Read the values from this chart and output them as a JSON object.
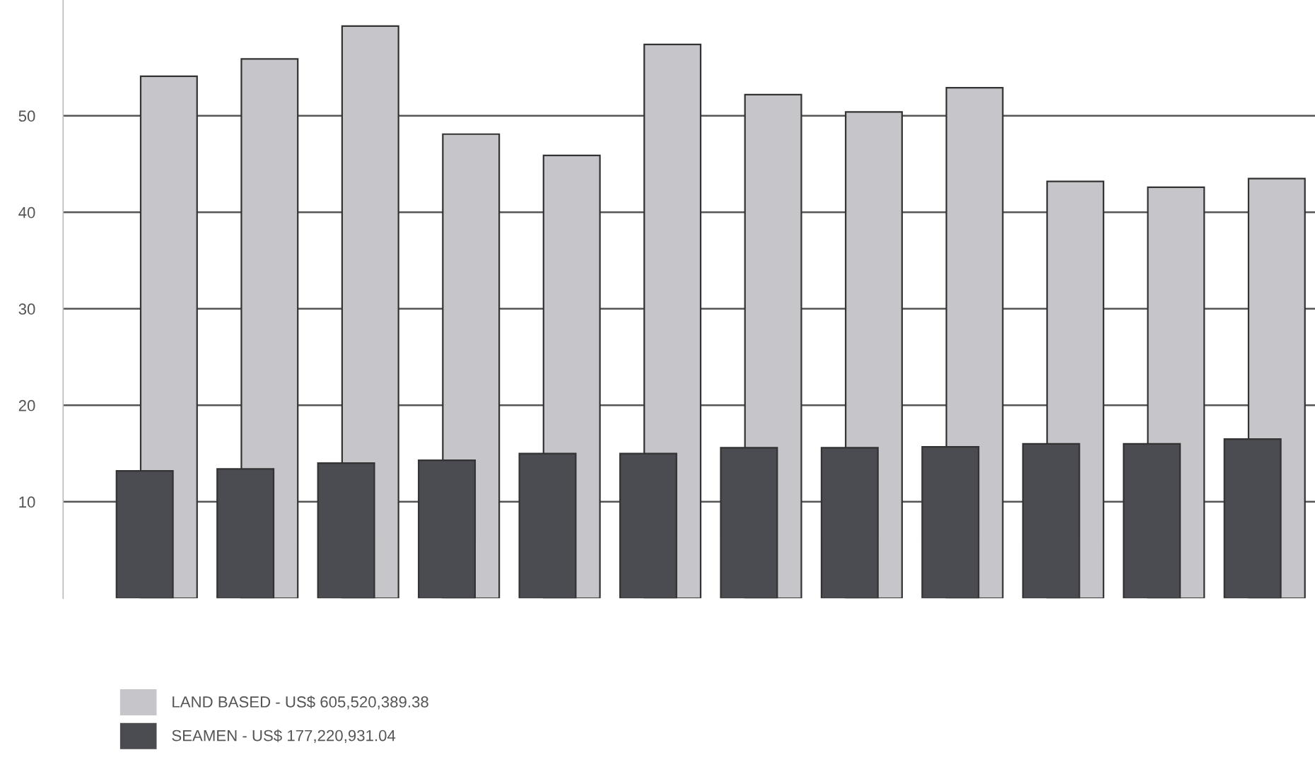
{
  "chart_data": {
    "type": "bar",
    "categories": [
      null,
      null,
      null,
      null,
      null,
      null,
      null,
      null,
      null,
      null,
      null,
      null
    ],
    "series": [
      {
        "name": "LAND BASED - US$ 605,520,389.38",
        "color": "#c6c6ca",
        "values": [
          54.1,
          55.9,
          59.3,
          48.1,
          45.9,
          57.4,
          52.2,
          50.4,
          52.9,
          43.2,
          42.6,
          43.5
        ]
      },
      {
        "name": "SEAMEN - US$ 177,220,931.04",
        "color": "#4b4b52",
        "values": [
          13.2,
          13.4,
          14.0,
          14.3,
          15.0,
          15.0,
          15.6,
          15.6,
          15.7,
          16.0,
          16.0,
          16.5
        ]
      }
    ],
    "ylim": [
      0,
      62
    ],
    "yticks": [
      10,
      20,
      30,
      40,
      50
    ],
    "grid": "y",
    "legend": "bottom left"
  }
}
